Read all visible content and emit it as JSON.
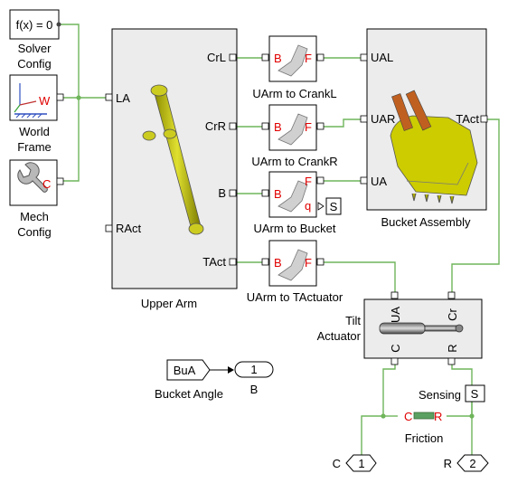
{
  "blocks": {
    "solver_config": {
      "text": "f(x) = 0",
      "label_line1": "Solver",
      "label_line2": "Config"
    },
    "world_frame": {
      "icon_letter": "W",
      "label_line1": "World",
      "label_line2": "Frame"
    },
    "mech_config": {
      "icon_letter": "C",
      "label_line1": "Mech",
      "label_line2": "Config"
    },
    "upper_arm": {
      "label": "Upper Arm",
      "port_la": "LA",
      "port_ract": "RAct",
      "port_crl": "CrL",
      "port_crr": "CrR",
      "port_b": "B",
      "port_tact": "TAct"
    },
    "uarm_crankl": {
      "label": "UArm to CrankL",
      "b": "B",
      "f": "F"
    },
    "uarm_crankr": {
      "label": "UArm to CrankR",
      "b": "B",
      "f": "F"
    },
    "uarm_bucket": {
      "label": "UArm to Bucket",
      "b": "B",
      "f": "F",
      "q": "q",
      "sensor": "S"
    },
    "uarm_tactuator": {
      "label": "UArm to TActuator",
      "b": "B",
      "f": "F"
    },
    "bucket_assembly": {
      "label": "Bucket Assembly",
      "port_ual": "UAL",
      "port_uar": "UAR",
      "port_ua": "UA",
      "port_tact": "TAct"
    },
    "tilt_actuator": {
      "label_line1": "Tilt",
      "label_line2": "Actuator",
      "port_ua": "UA",
      "port_cr": "Cr",
      "port_c": "C",
      "port_r": "R"
    },
    "bucket_angle": {
      "tag": "BuA",
      "label": "Bucket Angle",
      "out_num": "1",
      "out_label": "B"
    },
    "sensing": {
      "label": "Sensing",
      "symbol": "S"
    },
    "friction": {
      "label": "Friction",
      "c": "C",
      "r": "R"
    },
    "conn_c": {
      "label": "C",
      "num": "1"
    },
    "conn_r": {
      "label": "R",
      "num": "2"
    }
  },
  "colors": {
    "wire": "#6fb55b",
    "red_text": "#e00000",
    "block_fill": "#ececec",
    "part_yellow": "#c8c800"
  }
}
